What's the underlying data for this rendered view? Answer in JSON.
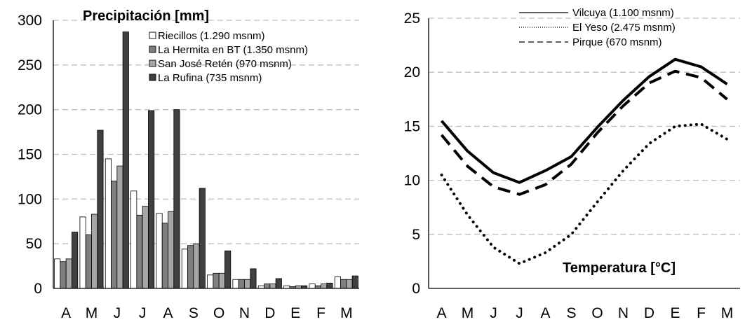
{
  "chart_data": [
    {
      "type": "bar",
      "title": "Precipitación [mm]",
      "categories": [
        "A",
        "M",
        "J",
        "J",
        "A",
        "S",
        "O",
        "N",
        "D",
        "E",
        "F",
        "M"
      ],
      "ylim": [
        0,
        300
      ],
      "yticks": [
        0,
        50,
        100,
        150,
        200,
        250,
        300
      ],
      "grid": true,
      "legend_position": "top-right",
      "series": [
        {
          "name": "Riecillos (1.290 msnm)",
          "color": "#ffffff",
          "values": [
            33,
            80,
            145,
            109,
            84,
            44,
            15,
            10,
            3,
            3,
            5,
            13
          ]
        },
        {
          "name": "La Hermita en BT (1.350 msnm)",
          "color": "#7f7f7f",
          "values": [
            30,
            60,
            120,
            82,
            73,
            48,
            17,
            10,
            5,
            2,
            3,
            10
          ]
        },
        {
          "name": "San José Retén (970 msnm)",
          "color": "#a6a6a6",
          "values": [
            33,
            83,
            137,
            92,
            86,
            50,
            17,
            10,
            5,
            3,
            5,
            10
          ]
        },
        {
          "name": "La Rufina (735 msnm)",
          "color": "#404040",
          "values": [
            63,
            177,
            287,
            199,
            200,
            112,
            42,
            22,
            11,
            3,
            6,
            14
          ]
        }
      ]
    },
    {
      "type": "line",
      "title": "Temperatura [°C]",
      "categories": [
        "A",
        "M",
        "J",
        "J",
        "A",
        "S",
        "O",
        "N",
        "D",
        "E",
        "F",
        "M"
      ],
      "ylim": [
        0,
        25
      ],
      "yticks": [
        0,
        5,
        10,
        15,
        20,
        25
      ],
      "grid": true,
      "legend_position": "top-right",
      "series": [
        {
          "name": "Vilcuya (1.100 msnm)",
          "style": "solid",
          "values": [
            15.5,
            12.7,
            10.7,
            9.8,
            10.9,
            12.2,
            14.9,
            17.4,
            19.6,
            21.2,
            20.5,
            18.9
          ]
        },
        {
          "name": "El Yeso (2.475 msnm)",
          "style": "dotted",
          "values": [
            10.5,
            6.8,
            3.8,
            2.3,
            3.3,
            5.0,
            8.0,
            10.9,
            13.4,
            15.0,
            15.2,
            13.8
          ]
        },
        {
          "name": "Pirque (670 msnm)",
          "style": "dashed",
          "values": [
            14.2,
            11.3,
            9.4,
            8.7,
            9.6,
            11.5,
            14.4,
            16.9,
            19.0,
            20.1,
            19.5,
            17.5
          ]
        }
      ]
    }
  ]
}
